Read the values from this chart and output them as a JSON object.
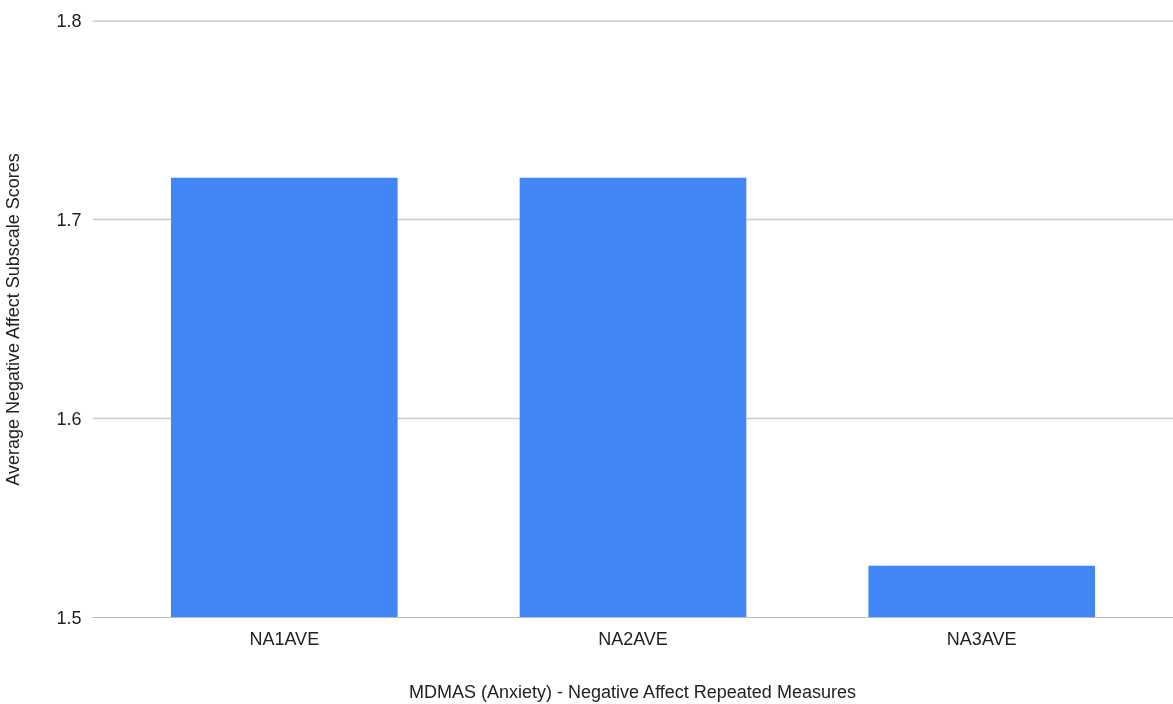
{
  "chart_data": {
    "type": "bar",
    "xlabel": "MDMAS (Anxiety) - Negative Affect Repeated Measures",
    "ylabel": "Average Negative Affect Subscale Scores",
    "categories": [
      "NA1AVE",
      "NA2AVE",
      "NA3AVE"
    ],
    "values": [
      1.721,
      1.721,
      1.526
    ],
    "color": "#4285f4",
    "ylim": [
      1.5,
      1.8
    ],
    "yticks": [
      1.5,
      1.6,
      1.7,
      1.8
    ],
    "grid": "y"
  }
}
